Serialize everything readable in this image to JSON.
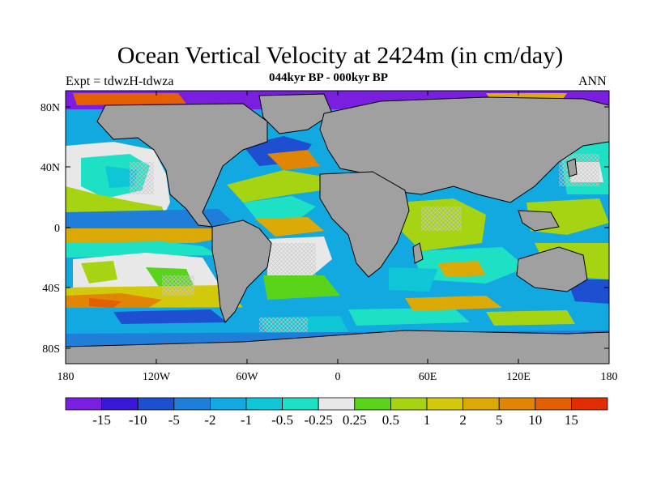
{
  "title": "Ocean Vertical Velocity at 2424m (in cm/day)",
  "experiment_label": "Expt = tdwzH-tdwza",
  "period_label": "044kyr BP - 000kyr BP",
  "season_label": "ANN",
  "lat_ticks": [
    "80N",
    "40N",
    "0",
    "40S",
    "80S"
  ],
  "lon_ticks": [
    "180",
    "120W",
    "60W",
    "0",
    "60E",
    "120E",
    "180"
  ],
  "colorbar": {
    "labels": [
      "-15",
      "-10",
      "-5",
      "-2",
      "-1",
      "-0.5",
      "-0.25",
      "0.25",
      "0.5",
      "1",
      "2",
      "5",
      "10",
      "15"
    ],
    "colors": [
      "#7a1fe0",
      "#3a18d8",
      "#1e4fd0",
      "#1f7ed8",
      "#12a8e0",
      "#0fc6d6",
      "#1ee0c4",
      "#e8e8e8",
      "#5ad41a",
      "#a6d412",
      "#d2c80c",
      "#dcaa06",
      "#e08604",
      "#e45e02",
      "#e02e00"
    ]
  },
  "colors": {
    "land": "#a0a0a0",
    "ocean_white": "#e8e8e8",
    "coast": "#000000"
  }
}
